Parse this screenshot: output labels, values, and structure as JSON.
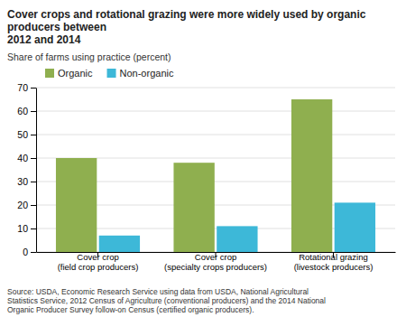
{
  "chart_data": {
    "type": "bar",
    "title": "Cover crops and rotational grazing were more widely used by organic producers between\n2012 and 2014",
    "ylabel": "Share of farms using practice (percent)",
    "source": "Source: USDA, Economic Research Service using data from USDA, National Agricultural\nStatistics Service, 2012 Census of Agriculture (conventional producers) and the 2014 National\nOrganic Producer Survey follow-on Census (certified organic producers).",
    "categories": [
      "Cover crop\n(field crop producers)",
      "Cover crop\n(specialty crops producers)",
      "Rotational grazing\n(livestock producers)"
    ],
    "series": [
      {
        "name": "Organic",
        "color": "#8faf4f",
        "values": [
          40,
          38,
          65
        ]
      },
      {
        "name": "Non-organic",
        "color": "#3db8d8",
        "values": [
          7,
          11,
          21
        ]
      }
    ],
    "ylim": [
      0,
      70
    ],
    "yticks": [
      0,
      10,
      20,
      30,
      40,
      50,
      60,
      70
    ],
    "grid": true,
    "legend": "upper left"
  }
}
